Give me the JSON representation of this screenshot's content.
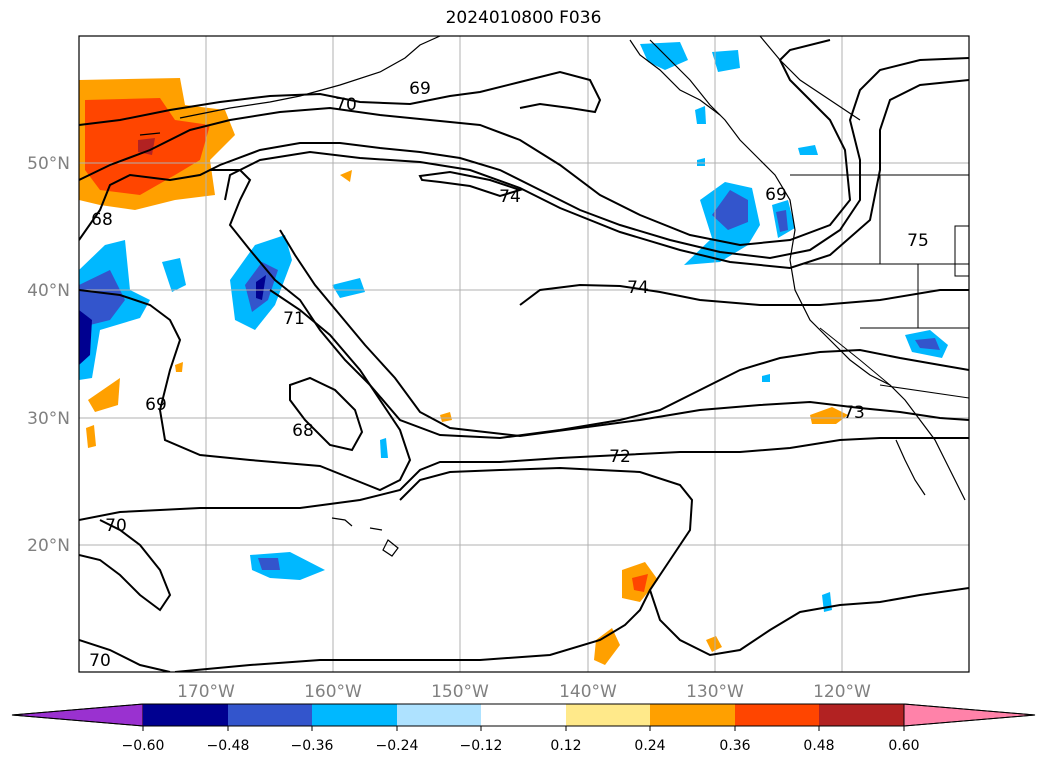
{
  "title": "2024010800 F036",
  "map": {
    "lat_labels": [
      "50°N",
      "40°N",
      "30°N",
      "20°N"
    ],
    "lon_labels": [
      "170°W",
      "160°W",
      "150°W",
      "140°W",
      "130°W",
      "120°W"
    ],
    "contour_labels": [
      "70",
      "69",
      "74",
      "68",
      "71",
      "69",
      "75",
      "74",
      "68",
      "69",
      "73",
      "72",
      "70",
      "70"
    ]
  },
  "colorbar": {
    "colors": [
      "#9a31d0",
      "#000090",
      "#3355cc",
      "#00b8ff",
      "#aee2ff",
      "#ffffff",
      "#ffe98a",
      "#ffa000",
      "#ff4500",
      "#b22222",
      "#ff82a9"
    ],
    "labels": [
      "−0.60",
      "−0.48",
      "−0.36",
      "−0.24",
      "−0.12",
      "0.12",
      "0.24",
      "0.36",
      "0.48",
      "0.60"
    ]
  }
}
